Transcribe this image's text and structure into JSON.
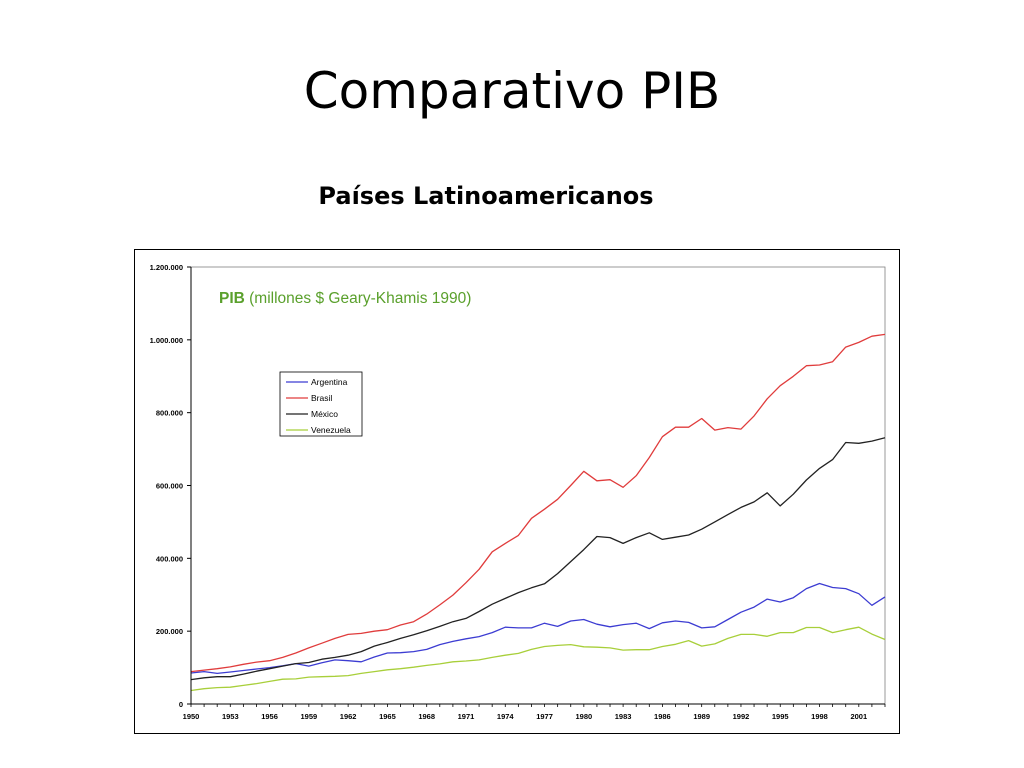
{
  "slide": {
    "title": "Comparativo PIB",
    "subtitle": "Países Latinoamericanos"
  },
  "chart_data": {
    "type": "line",
    "title_bold": "PIB",
    "title_rest": " (millones $ Geary-Khamis 1990)",
    "title_color": "#5aa02c",
    "ylim": [
      0,
      1200000
    ],
    "y_ticks": [
      "0",
      "200.000",
      "400.000",
      "600.000",
      "800.000",
      "1.000.000",
      "1.200.000"
    ],
    "y_tick_values": [
      0,
      200000,
      400000,
      600000,
      800000,
      1000000,
      1200000
    ],
    "x_ticks": [
      "1950",
      "1953",
      "1956",
      "1959",
      "1962",
      "1965",
      "1968",
      "1971",
      "1974",
      "1977",
      "1980",
      "1983",
      "1986",
      "1989",
      "1992",
      "1995",
      "1998",
      "2001"
    ],
    "x_tick_values": [
      1950,
      1953,
      1956,
      1959,
      1962,
      1965,
      1968,
      1971,
      1974,
      1977,
      1980,
      1983,
      1986,
      1989,
      1992,
      1995,
      1998,
      2001
    ],
    "xlim": [
      1950,
      2003
    ],
    "grid": false,
    "legend_position": "upper-left",
    "x": [
      1950,
      1951,
      1952,
      1953,
      1954,
      1955,
      1956,
      1957,
      1958,
      1959,
      1960,
      1961,
      1962,
      1963,
      1964,
      1965,
      1966,
      1967,
      1968,
      1969,
      1970,
      1971,
      1972,
      1973,
      1974,
      1975,
      1976,
      1977,
      1978,
      1979,
      1980,
      1981,
      1982,
      1983,
      1984,
      1985,
      1986,
      1987,
      1988,
      1989,
      1990,
      1991,
      1992,
      1993,
      1994,
      1995,
      1996,
      1997,
      1998,
      1999,
      2000,
      2001,
      2002,
      2003
    ],
    "series": [
      {
        "name": "Argentina",
        "color": "#3c3cd2",
        "values": [
          85000,
          89000,
          84000,
          88000,
          92000,
          96000,
          100000,
          105000,
          111000,
          104000,
          113000,
          121000,
          119000,
          116000,
          129000,
          140000,
          141000,
          144000,
          150000,
          163000,
          172000,
          179000,
          185000,
          196000,
          211000,
          209000,
          209000,
          222000,
          213000,
          228000,
          232000,
          219000,
          212000,
          218000,
          222000,
          207000,
          223000,
          228000,
          224000,
          209000,
          212000,
          232000,
          252000,
          266000,
          288000,
          280000,
          292000,
          317000,
          331000,
          320000,
          317000,
          303000,
          271000,
          294000
        ]
      },
      {
        "name": "Brasil",
        "color": "#e03c3c",
        "values": [
          89000,
          93000,
          97000,
          102000,
          109000,
          115000,
          119000,
          128000,
          140000,
          154000,
          167000,
          180000,
          191000,
          194000,
          200000,
          204000,
          217000,
          226000,
          247000,
          272000,
          299000,
          333000,
          370000,
          418000,
          441000,
          463000,
          510000,
          535000,
          562000,
          600000,
          639000,
          613000,
          616000,
          595000,
          627000,
          677000,
          734000,
          760000,
          760000,
          784000,
          752000,
          759000,
          755000,
          791000,
          838000,
          874000,
          900000,
          929000,
          931000,
          940000,
          980000,
          993000,
          1010000,
          1015000
        ]
      },
      {
        "name": "México",
        "color": "#222222",
        "values": [
          67000,
          72000,
          75000,
          75000,
          82000,
          90000,
          97000,
          104000,
          111000,
          114000,
          123000,
          128000,
          134000,
          144000,
          159000,
          169000,
          180000,
          190000,
          201000,
          213000,
          226000,
          235000,
          254000,
          274000,
          290000,
          306000,
          319000,
          330000,
          358000,
          391000,
          424000,
          460000,
          457000,
          441000,
          457000,
          470000,
          452000,
          458000,
          464000,
          480000,
          500000,
          520000,
          540000,
          555000,
          580000,
          544000,
          576000,
          615000,
          647000,
          671000,
          718000,
          716000,
          722000,
          731000
        ]
      },
      {
        "name": "Venezuela",
        "color": "#a8cf3a",
        "values": [
          37000,
          42000,
          45000,
          46000,
          51000,
          56000,
          62000,
          68000,
          69000,
          74000,
          75000,
          76000,
          78000,
          84000,
          89000,
          94000,
          97000,
          101000,
          106000,
          110000,
          116000,
          118000,
          121000,
          128000,
          134000,
          139000,
          150000,
          158000,
          161000,
          163000,
          157000,
          156000,
          154000,
          148000,
          149000,
          149000,
          158000,
          164000,
          174000,
          159000,
          165000,
          180000,
          191000,
          191000,
          186000,
          196000,
          196000,
          210000,
          210000,
          196000,
          204000,
          211000,
          192000,
          177000
        ]
      }
    ]
  }
}
